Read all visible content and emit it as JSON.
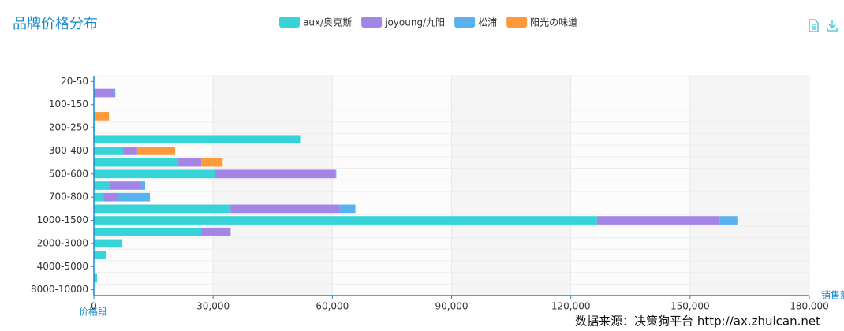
{
  "chart_data": {
    "type": "bar",
    "orientation": "horizontal",
    "stacked": true,
    "title": "品牌价格分布",
    "y_axis_label": "价格段",
    "x_axis_label": "销售额",
    "source": "数据来源：决策狗平台 http://ax.zhuican.net",
    "categories": [
      "20-50",
      null,
      "100-150",
      null,
      "200-250",
      null,
      "300-400",
      null,
      "500-600",
      null,
      "700-800",
      null,
      "1000-1500",
      null,
      "2000-3000",
      null,
      "4000-5000",
      null,
      "8000-10000"
    ],
    "series": [
      {
        "name": "aux/奥克斯",
        "color": "#36d3d8",
        "values": [
          0,
          0,
          0,
          200,
          400,
          51900,
          7350,
          21250,
          30400,
          4000,
          2400,
          34400,
          126600,
          27000,
          7150,
          3000,
          0,
          800,
          0
        ]
      },
      {
        "name": "joyoung/九阳",
        "color": "#a385e6",
        "values": [
          0,
          5100,
          0,
          0,
          0,
          0,
          3550,
          5750,
          30400,
          7900,
          3750,
          27400,
          30800,
          7400,
          0,
          0,
          0,
          0,
          0
        ]
      },
      {
        "name": "松浦",
        "color": "#5ab1ef",
        "values": [
          0,
          300,
          0,
          0,
          0,
          0,
          0,
          0,
          200,
          1000,
          7950,
          4000,
          4500,
          0,
          0,
          0,
          0,
          0,
          0
        ]
      },
      {
        "name": "阳光の味道",
        "color": "#ff9a3c",
        "values": [
          0,
          0,
          0,
          3600,
          0,
          0,
          9550,
          5400,
          0,
          0,
          0,
          0,
          0,
          0,
          0,
          0,
          0,
          0,
          0
        ]
      }
    ],
    "xlim": [
      0,
      180000
    ],
    "xticks": [
      0,
      {
        "value": 30000,
        "label": "30,000"
      },
      {
        "value": 60000,
        "label": "60,000"
      },
      {
        "value": 90000,
        "label": "90,000"
      },
      {
        "value": 120000,
        "label": "120,000"
      },
      {
        "value": 150000,
        "label": "150,000"
      },
      {
        "value": 180000,
        "label": "180,000"
      }
    ],
    "grid": true,
    "legend": "top"
  }
}
